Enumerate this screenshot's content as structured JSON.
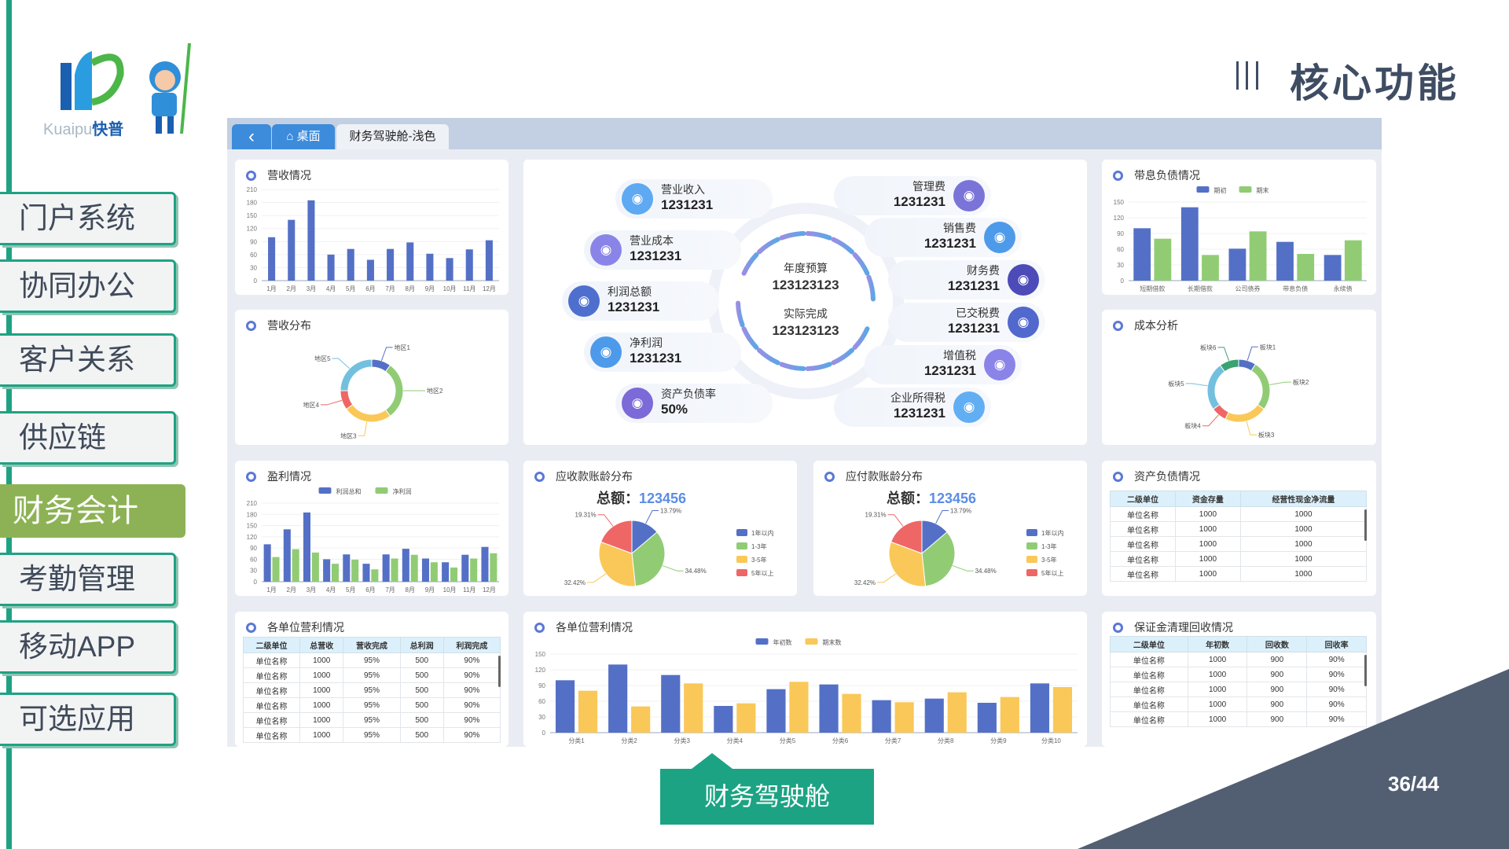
{
  "logo": {
    "text_latin": "Kuaipu",
    "text_cn": "快普"
  },
  "sidebar": {
    "items": [
      {
        "label": "门户系统"
      },
      {
        "label": "协同办公"
      },
      {
        "label": "客户关系"
      },
      {
        "label": "供应链"
      },
      {
        "label": "财务会计",
        "active": true
      },
      {
        "label": "考勤管理"
      },
      {
        "label": "移动APP"
      },
      {
        "label": "可选应用"
      }
    ]
  },
  "header": {
    "title": "核心功能"
  },
  "dashboard": {
    "tabs": [
      {
        "label": "‹",
        "icon": "back-icon"
      },
      {
        "label": "桌面",
        "icon": "home-icon"
      },
      {
        "label": "财务驾驶舱-浅色",
        "active": true
      }
    ],
    "center": {
      "budget_label": "年度预算",
      "budget_value": "123123123",
      "actual_label": "实际完成",
      "actual_value": "123123123",
      "left": [
        {
          "label": "营业收入",
          "value": "1231231",
          "icon": "money-bag-icon",
          "color": "#5ea9f2"
        },
        {
          "label": "营业成本",
          "value": "1231231",
          "icon": "calculator-icon",
          "color": "#8b84e8"
        },
        {
          "label": "利润总额",
          "value": "1231231",
          "icon": "coins-icon",
          "color": "#4f6fcf"
        },
        {
          "label": "净利润",
          "value": "1231231",
          "icon": "report-icon",
          "color": "#4e9aea"
        },
        {
          "label": "资产负债率",
          "value": "50%",
          "icon": "ledger-icon",
          "color": "#7b6ad8"
        }
      ],
      "right": [
        {
          "label": "管理费",
          "value": "1231231",
          "icon": "card-icon",
          "color": "#7b74d8"
        },
        {
          "label": "销售费",
          "value": "1231231",
          "icon": "bar-chart-icon",
          "color": "#4e9aea"
        },
        {
          "label": "财务费",
          "value": "1231231",
          "icon": "yuan-icon",
          "color": "#4c4bb8"
        },
        {
          "label": "已交税费",
          "value": "1231231",
          "icon": "tax-icon",
          "color": "#5168cc"
        },
        {
          "label": "增值税",
          "value": "1231231",
          "icon": "coin-stack-icon",
          "color": "#8b84e8"
        },
        {
          "label": "企业所得税",
          "value": "1231231",
          "icon": "building-icon",
          "color": "#62aef3"
        }
      ]
    },
    "panels": {
      "revenue": {
        "title": "营收情况"
      },
      "revenue_dist": {
        "title": "营收分布"
      },
      "profit": {
        "title": "盈利情况"
      },
      "receivable": {
        "title": "应收款账龄分布",
        "total_label": "总额：",
        "total": "123456"
      },
      "payable": {
        "title": "应付款账龄分布",
        "total_label": "总额：",
        "total": "123456"
      },
      "debt": {
        "title": "带息负债情况"
      },
      "cost": {
        "title": "成本分析"
      },
      "assets": {
        "title": "资产负债情况",
        "columns": [
          "二级单位",
          "资金存量",
          "经营性现金净流量"
        ],
        "rows": [
          [
            "单位名称",
            "1000",
            "1000"
          ],
          [
            "单位名称",
            "1000",
            "1000"
          ],
          [
            "单位名称",
            "1000",
            "1000"
          ],
          [
            "单位名称",
            "1000",
            "1000"
          ],
          [
            "单位名称",
            "1000",
            "1000"
          ]
        ]
      },
      "unit_table": {
        "title": "各单位营利情况",
        "columns": [
          "二级单位",
          "总营收",
          "营收完成",
          "总利润",
          "利润完成"
        ],
        "rows": [
          [
            "单位名称",
            "1000",
            "95%",
            "500",
            "90%"
          ],
          [
            "单位名称",
            "1000",
            "95%",
            "500",
            "90%"
          ],
          [
            "单位名称",
            "1000",
            "95%",
            "500",
            "90%"
          ],
          [
            "单位名称",
            "1000",
            "95%",
            "500",
            "90%"
          ],
          [
            "单位名称",
            "1000",
            "95%",
            "500",
            "90%"
          ],
          [
            "单位名称",
            "1000",
            "95%",
            "500",
            "90%"
          ]
        ]
      },
      "unit_chart": {
        "title": "各单位营利情况"
      },
      "deposit": {
        "title": "保证金清理回收情况",
        "columns": [
          "二级单位",
          "年初数",
          "回收数",
          "回收率"
        ],
        "rows": [
          [
            "单位名称",
            "1000",
            "900",
            "90%"
          ],
          [
            "单位名称",
            "1000",
            "900",
            "90%"
          ],
          [
            "单位名称",
            "1000",
            "900",
            "90%"
          ],
          [
            "单位名称",
            "1000",
            "900",
            "90%"
          ],
          [
            "单位名称",
            "1000",
            "900",
            "90%"
          ]
        ]
      }
    }
  },
  "chart_data": [
    {
      "id": "revenue",
      "type": "bar",
      "categories": [
        "1月",
        "2月",
        "3月",
        "4月",
        "5月",
        "6月",
        "7月",
        "8月",
        "9月",
        "10月",
        "11月",
        "12月"
      ],
      "series": [
        {
          "values": [
            100,
            140,
            185,
            60,
            73,
            48,
            73,
            88,
            62,
            52,
            72,
            93
          ],
          "color": "#5470c6"
        }
      ],
      "ylim": [
        0,
        210
      ],
      "yticks": [
        0,
        30,
        60,
        90,
        120,
        150,
        180,
        210
      ],
      "grid": false
    },
    {
      "id": "profit",
      "type": "bar",
      "categories": [
        "1月",
        "2月",
        "3月",
        "4月",
        "5月",
        "6月",
        "7月",
        "8月",
        "9月",
        "10月",
        "11月",
        "12月"
      ],
      "series": [
        {
          "name": "利润总和",
          "values": [
            100,
            140,
            185,
            60,
            73,
            48,
            73,
            88,
            62,
            52,
            72,
            93
          ],
          "color": "#5470c6"
        },
        {
          "name": "净利润",
          "values": [
            66,
            87,
            78,
            48,
            59,
            33,
            62,
            72,
            52,
            38,
            62,
            76
          ],
          "color": "#91cc75"
        }
      ],
      "ylim": [
        0,
        210
      ],
      "yticks": [
        0,
        30,
        60,
        90,
        120,
        150,
        180,
        210
      ],
      "legend": "top"
    },
    {
      "id": "debt",
      "type": "bar",
      "categories": [
        "短期借款",
        "长期借款",
        "公司债券",
        "带息负债",
        "永续债"
      ],
      "series": [
        {
          "name": "期初",
          "values": [
            100,
            140,
            61,
            74,
            49
          ],
          "color": "#5470c6"
        },
        {
          "name": "期末",
          "values": [
            80,
            49,
            94,
            51,
            77
          ],
          "color": "#91cc75"
        }
      ],
      "ylim": [
        0,
        150
      ],
      "yticks": [
        0,
        30,
        60,
        90,
        120,
        150
      ],
      "legend": "top"
    },
    {
      "id": "unit_chart",
      "type": "bar",
      "categories": [
        "分类1",
        "分类2",
        "分类3",
        "分类4",
        "分类5",
        "分类6",
        "分类7",
        "分类8",
        "分类9",
        "分类10"
      ],
      "series": [
        {
          "name": "年初数",
          "values": [
            100,
            130,
            110,
            51,
            83,
            92,
            62,
            65,
            57,
            94
          ],
          "color": "#5470c6"
        },
        {
          "name": "期末数",
          "values": [
            80,
            50,
            94,
            56,
            97,
            74,
            58,
            77,
            68,
            87
          ],
          "color": "#fac858"
        }
      ],
      "ylim": [
        0,
        150
      ],
      "yticks": [
        0,
        30,
        60,
        90,
        120,
        150
      ],
      "legend": "top"
    },
    {
      "id": "receivable",
      "type": "pie",
      "labels": [
        "1年以内",
        "1-3年",
        "3-5年",
        "5年以上"
      ],
      "values": [
        13.79,
        34.48,
        32.42,
        19.31
      ],
      "value_labels": [
        "13.79%",
        "34.48%",
        "32.42%",
        "19.31%"
      ],
      "colors": [
        "#5470c6",
        "#91cc75",
        "#fac858",
        "#ee6666"
      ],
      "legend": "right"
    },
    {
      "id": "payable",
      "type": "pie",
      "labels": [
        "1年以内",
        "1-3年",
        "3-5年",
        "5年以上"
      ],
      "values": [
        13.79,
        34.48,
        32.42,
        19.31
      ],
      "value_labels": [
        "13.79%",
        "34.48%",
        "32.42%",
        "19.31%"
      ],
      "colors": [
        "#5470c6",
        "#91cc75",
        "#fac858",
        "#ee6666"
      ],
      "legend": "right"
    },
    {
      "id": "revenue_dist",
      "type": "pie",
      "donut": true,
      "labels": [
        "地区1",
        "地区2",
        "地区3",
        "地区4",
        "地区5"
      ],
      "values": [
        10,
        30,
        25,
        10,
        25
      ],
      "colors": [
        "#5470c6",
        "#91cc75",
        "#fac858",
        "#ee6666",
        "#73c0de"
      ]
    },
    {
      "id": "cost",
      "type": "pie",
      "donut": true,
      "labels": [
        "板块1",
        "板块2",
        "板块3",
        "板块4",
        "板块5",
        "板块6"
      ],
      "values": [
        9,
        26,
        22,
        8,
        25,
        10
      ],
      "colors": [
        "#5470c6",
        "#91cc75",
        "#fac858",
        "#ee6666",
        "#73c0de",
        "#3ba272"
      ]
    }
  ],
  "footer": {
    "callout": "财务驾驶舱",
    "page": "36/44"
  },
  "colors": {
    "teal": "#1fa283",
    "active": "#8db255",
    "corner": "#525e72"
  }
}
